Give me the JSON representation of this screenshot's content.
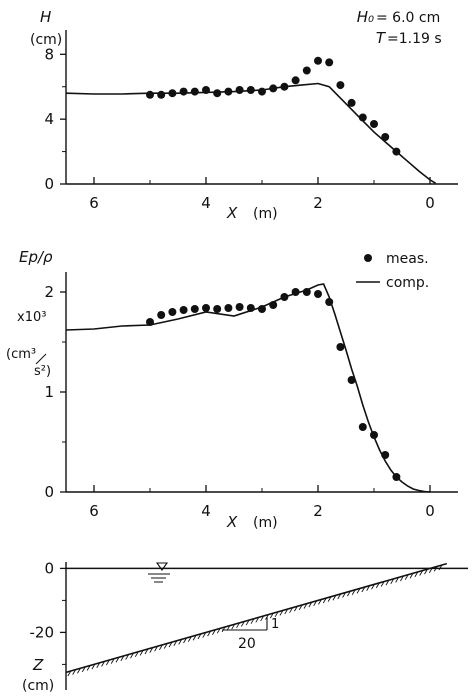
{
  "chart_data": [
    {
      "type": "line",
      "ylabel": "H",
      "yunit": "(cm)",
      "annotation_lines": [
        {
          "label": "H₀",
          "value": "= 6.0 cm"
        },
        {
          "label": "T",
          "value": "=1.19 s"
        }
      ],
      "xlabel": "X",
      "xunit": "(m)",
      "xlim": [
        6.5,
        -0.5
      ],
      "ylim": [
        0,
        9.5
      ],
      "xticks": [
        "6",
        "4",
        "2",
        "0"
      ],
      "yticks": [
        "0",
        "4",
        "8"
      ],
      "series": [
        {
          "kind": "line",
          "x": [
            6.5,
            6.0,
            5.5,
            5.0,
            4.5,
            4.0,
            3.5,
            3.0,
            2.6,
            2.3,
            2.0,
            1.8,
            1.6,
            1.4,
            1.2,
            1.0,
            0.8,
            0.6,
            0.4,
            0.2,
            0.0,
            -0.1
          ],
          "y": [
            5.6,
            5.55,
            5.55,
            5.6,
            5.6,
            5.65,
            5.7,
            5.8,
            6.0,
            6.1,
            6.2,
            6.0,
            5.3,
            4.6,
            3.9,
            3.2,
            2.6,
            2.0,
            1.4,
            0.8,
            0.25,
            0.05
          ]
        },
        {
          "kind": "points",
          "x": [
            5.0,
            4.8,
            4.6,
            4.4,
            4.2,
            4.0,
            3.8,
            3.6,
            3.4,
            3.2,
            3.0,
            2.8,
            2.6,
            2.4,
            2.2,
            2.0,
            1.8,
            1.6,
            1.4,
            1.2,
            1.0,
            0.8,
            0.6
          ],
          "y": [
            5.5,
            5.5,
            5.6,
            5.7,
            5.7,
            5.8,
            5.6,
            5.7,
            5.8,
            5.8,
            5.7,
            5.9,
            6.0,
            6.4,
            7.0,
            7.6,
            7.5,
            6.1,
            5.0,
            4.1,
            3.7,
            2.9,
            2.0
          ]
        }
      ]
    },
    {
      "type": "line",
      "ylabel": "Ep/ρ",
      "yscale_label": "x10³",
      "yunit_num": "(cm³",
      "yunit_den": "s²)",
      "xlabel": "X",
      "xunit": "(m)",
      "xlim": [
        6.5,
        -0.5
      ],
      "ylim": [
        0,
        2.2
      ],
      "xticks": [
        "6",
        "4",
        "2",
        "0"
      ],
      "yticks": [
        "0",
        "1",
        "2"
      ],
      "legend": {
        "position": "top-right",
        "points_label": "meas.",
        "line_label": "comp."
      },
      "series": [
        {
          "kind": "line",
          "x": [
            6.5,
            6.0,
            5.5,
            5.0,
            4.5,
            4.0,
            3.5,
            3.0,
            2.6,
            2.2,
            2.0,
            1.9,
            1.8,
            1.7,
            1.6,
            1.5,
            1.4,
            1.3,
            1.2,
            1.1,
            1.0,
            0.9,
            0.8,
            0.7,
            0.6,
            0.5,
            0.4,
            0.3,
            0.2,
            0.1,
            0.0
          ],
          "y": [
            1.62,
            1.63,
            1.66,
            1.67,
            1.73,
            1.8,
            1.76,
            1.85,
            1.95,
            2.02,
            2.07,
            2.08,
            1.95,
            1.78,
            1.6,
            1.42,
            1.23,
            1.06,
            0.87,
            0.7,
            0.55,
            0.42,
            0.31,
            0.22,
            0.15,
            0.1,
            0.06,
            0.03,
            0.015,
            0.005,
            0.0
          ]
        },
        {
          "kind": "points",
          "x": [
            5.0,
            4.8,
            4.6,
            4.4,
            4.2,
            4.0,
            3.8,
            3.6,
            3.4,
            3.2,
            3.0,
            2.8,
            2.6,
            2.4,
            2.2,
            2.0,
            1.8,
            1.6,
            1.4,
            1.2,
            1.0,
            0.8,
            0.6
          ],
          "y": [
            1.7,
            1.77,
            1.8,
            1.82,
            1.83,
            1.84,
            1.83,
            1.84,
            1.85,
            1.84,
            1.83,
            1.87,
            1.95,
            2.0,
            2.0,
            1.98,
            1.9,
            1.45,
            1.12,
            0.65,
            0.57,
            0.37,
            0.15
          ]
        }
      ]
    },
    {
      "type": "profile",
      "ylabel": "Z",
      "yunit": "(cm)",
      "xlim": [
        6.5,
        -0.5
      ],
      "ylim": [
        -38,
        2
      ],
      "yticks": [
        "0",
        "-20"
      ],
      "water_level": 0,
      "slope_text": {
        "run": "20",
        "rise": "1"
      },
      "bottom": {
        "x": [
          6.5,
          -0.3
        ],
        "z": [
          -32.5,
          1.5
        ]
      }
    }
  ]
}
